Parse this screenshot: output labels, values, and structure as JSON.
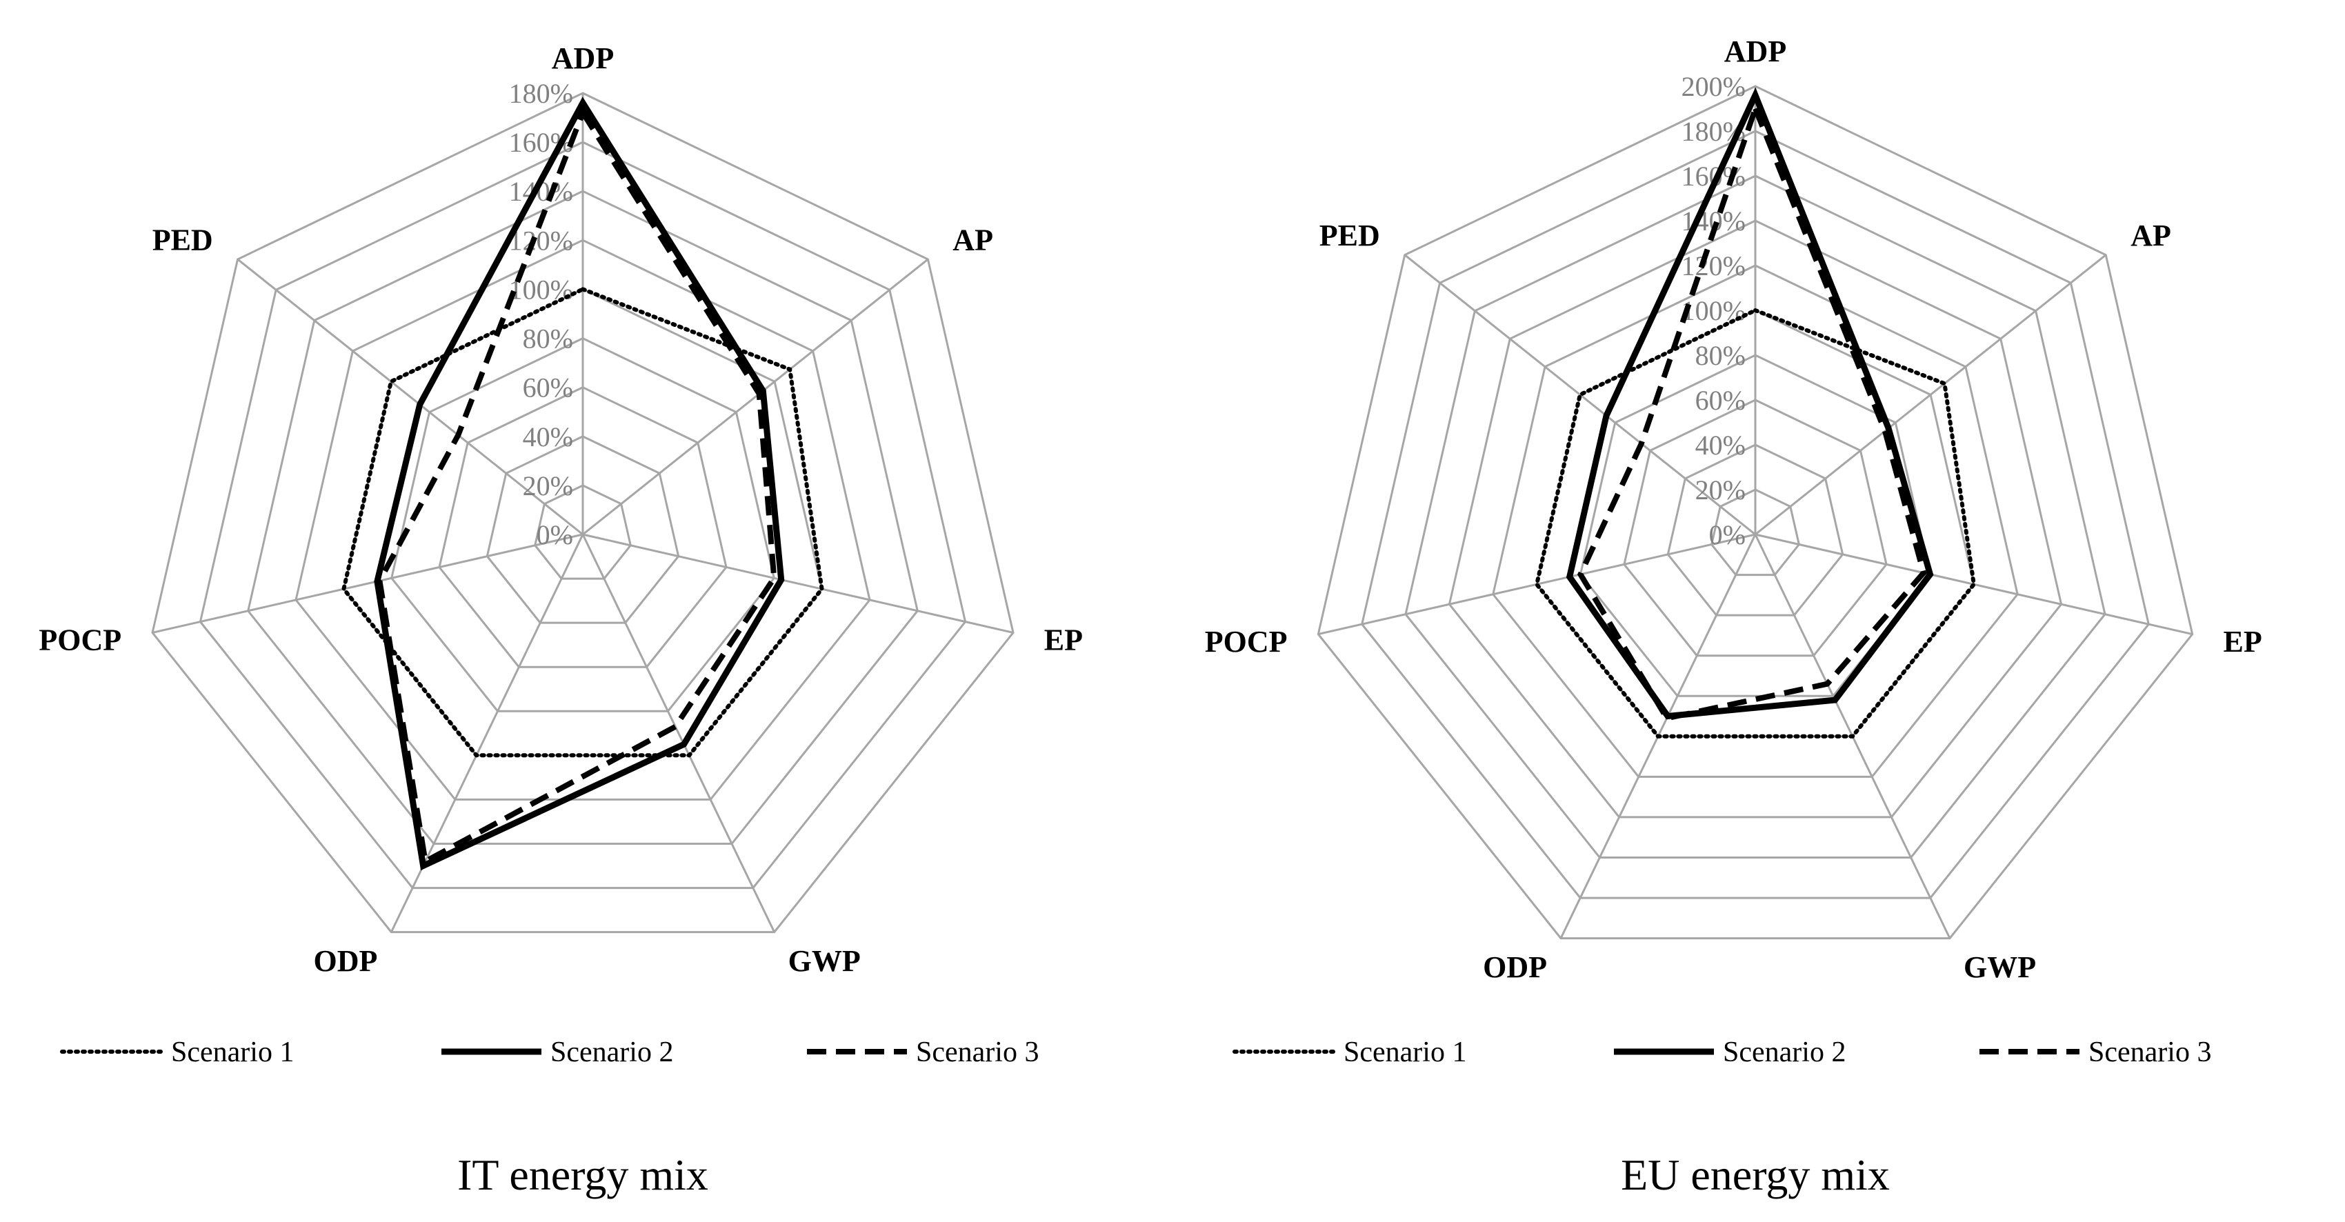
{
  "chart_data": [
    {
      "type": "radar",
      "title": "IT energy mix",
      "axes": [
        "ADP",
        "AP",
        "EP",
        "GWP",
        "ODP",
        "POCP",
        "PED"
      ],
      "ticks": [
        "0%",
        "20%",
        "40%",
        "60%",
        "80%",
        "100%",
        "120%",
        "140%",
        "160%",
        "180%"
      ],
      "rmax": 180,
      "legend_position": "bottom",
      "series": [
        {
          "name": "Scenario 1",
          "style": "dotted",
          "values": [
            100,
            108,
            100,
            100,
            100,
            100,
            100
          ]
        },
        {
          "name": "Scenario 2",
          "style": "solid",
          "values": [
            176,
            94,
            83,
            95,
            150,
            86,
            85
          ]
        },
        {
          "name": "Scenario 3",
          "style": "dashed",
          "values": [
            172,
            92,
            80,
            87,
            148,
            85,
            65
          ]
        }
      ]
    },
    {
      "type": "radar",
      "title": "EU energy mix",
      "axes": [
        "ADP",
        "AP",
        "EP",
        "GWP",
        "ODP",
        "POCP",
        "PED"
      ],
      "ticks": [
        "0%",
        "20%",
        "40%",
        "60%",
        "80%",
        "100%",
        "120%",
        "140%",
        "160%",
        "180%",
        "200%"
      ],
      "rmax": 200,
      "legend_position": "bottom",
      "series": [
        {
          "name": "Scenario 1",
          "style": "dotted",
          "values": [
            100,
            108,
            100,
            100,
            100,
            100,
            100
          ]
        },
        {
          "name": "Scenario 2",
          "style": "solid",
          "values": [
            196,
            76,
            80,
            82,
            90,
            85,
            85
          ]
        },
        {
          "name": "Scenario 3",
          "style": "dashed",
          "values": [
            190,
            74,
            77,
            74,
            91,
            80,
            65
          ]
        }
      ]
    }
  ],
  "colors": {
    "grid": "#a6a6a6",
    "series": "#000000",
    "tick": "#808080"
  }
}
